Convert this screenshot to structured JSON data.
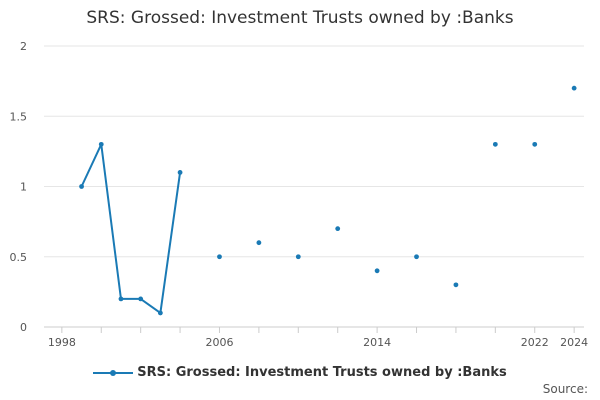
{
  "title": "SRS: Grossed: Investment Trusts owned by :Banks",
  "legend_label": "SRS: Grossed: Investment Trusts owned by :Banks",
  "source_label": "Source:",
  "colors": {
    "series": "#1a7ab5",
    "grid": "#e6e6e6",
    "axis": "#cccccc",
    "text": "#555555"
  },
  "chart_data": {
    "type": "line",
    "title": "SRS: Grossed: Investment Trusts owned by :Banks",
    "xlabel": "",
    "ylabel": "",
    "xlim": [
      1997.5,
      2024.5
    ],
    "ylim": [
      0,
      2
    ],
    "x_ticks": [
      1998,
      2006,
      2014,
      2022,
      2024
    ],
    "y_ticks": [
      0,
      0.5,
      1,
      1.5,
      2
    ],
    "y_tick_labels": [
      "0",
      "0.5",
      "1",
      "1.5",
      "2"
    ],
    "grid": true,
    "legend_position": "bottom",
    "series": [
      {
        "name": "SRS: Grossed: Investment Trusts owned by :Banks",
        "x": [
          1999,
          2000,
          2001,
          2002,
          2003,
          2004,
          2006,
          2008,
          2010,
          2012,
          2014,
          2016,
          2018,
          2020,
          2022,
          2024
        ],
        "y": [
          1.0,
          1.3,
          0.2,
          0.2,
          0.1,
          1.1,
          0.5,
          0.6,
          0.5,
          0.7,
          0.4,
          0.5,
          0.3,
          1.3,
          1.3,
          1.7
        ]
      }
    ]
  }
}
